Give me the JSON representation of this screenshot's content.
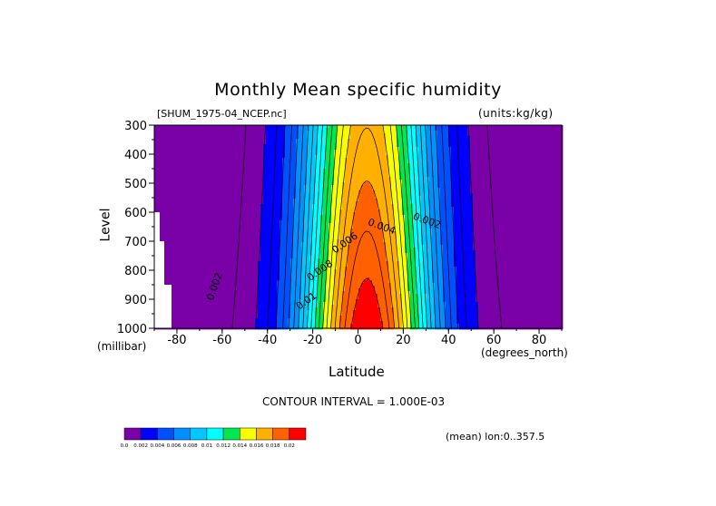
{
  "chart_data": {
    "type": "contour",
    "title": "Monthly Mean specific humidity",
    "subtitle_left": "[SHUM_1975-04_NCEP.nc]",
    "subtitle_right": "(units:kg/kg)",
    "xlabel": "Latitude",
    "x_units": "(degrees_north)",
    "ylabel": "Level",
    "y_units": "(millibar)",
    "xlim": [
      -90,
      90
    ],
    "ylim": [
      1000,
      300
    ],
    "x_ticks": [
      "-80",
      "-60",
      "-40",
      "-20",
      "0",
      "20",
      "40",
      "60",
      "80"
    ],
    "x_tick_values": [
      -80,
      -60,
      -40,
      -20,
      0,
      20,
      40,
      60,
      80
    ],
    "y_ticks": [
      "300",
      "400",
      "500",
      "600",
      "700",
      "800",
      "900",
      "1000"
    ],
    "y_tick_values": [
      300,
      400,
      500,
      600,
      700,
      800,
      900,
      1000
    ],
    "contour_interval_text": "CONTOUR INTERVAL = 1.000E-03",
    "contour_labels": [
      {
        "text": "0.002",
        "lat": 30,
        "lev": 640
      },
      {
        "text": "0.004",
        "lat": 10,
        "lev": 660
      },
      {
        "text": "0.006",
        "lat": -5,
        "lev": 715
      },
      {
        "text": "0.008",
        "lat": -16,
        "lev": 810
      },
      {
        "text": "0.01",
        "lat": -22,
        "lev": 915
      },
      {
        "text": "0.002",
        "lat": -62,
        "lev": 860
      }
    ],
    "colorbar": {
      "levels": [
        "0.0",
        "0.002",
        "0.004",
        "0.006",
        "0.008",
        "0.01",
        "0.012",
        "0.014",
        "0.016",
        "0.018",
        "0.02"
      ],
      "colors": [
        "#7a00a8",
        "#0000ff",
        "#0050ff",
        "#0090ff",
        "#00c8ff",
        "#00ffff",
        "#00e850",
        "#f8ff00",
        "#ffb000",
        "#ff6000",
        "#ff0000"
      ]
    },
    "footer_note": "(mean) lon:0..357.5"
  }
}
